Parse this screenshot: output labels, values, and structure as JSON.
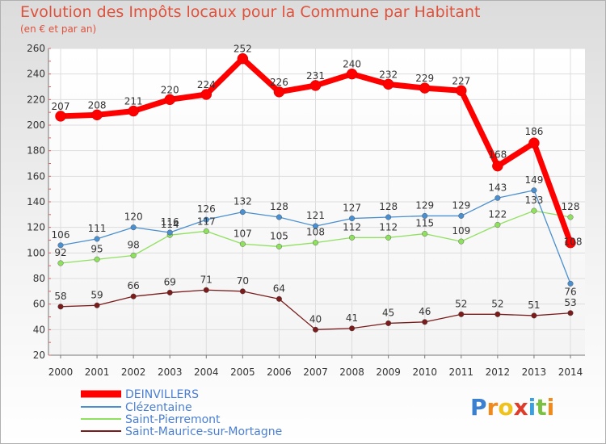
{
  "chart_data": {
    "type": "line",
    "title": "Evolution des Impôts locaux pour la Commune par Habitant",
    "subtitle": "(en € et par an)",
    "xlabel": "",
    "ylabel": "",
    "ylim": [
      20,
      260
    ],
    "y_ticks": [
      "20",
      "40",
      "60",
      "80",
      "100",
      "120",
      "140",
      "160",
      "180",
      "200",
      "220",
      "240",
      "260"
    ],
    "x": [
      "2000",
      "2001",
      "2002",
      "2003",
      "2004",
      "2005",
      "2006",
      "2007",
      "2008",
      "2009",
      "2010",
      "2011",
      "2012",
      "2013",
      "2014"
    ],
    "grid": true,
    "legend_position": "bottom-left",
    "series": [
      {
        "name": "DEINVILLERS",
        "color": "#ff0000",
        "values": [
          207,
          208,
          211,
          220,
          224,
          252,
          226,
          231,
          240,
          232,
          229,
          227,
          168,
          186,
          108
        ]
      },
      {
        "name": "Clézentaine",
        "color": "#4a8fd0",
        "values": [
          106,
          111,
          120,
          116,
          126,
          132,
          128,
          121,
          127,
          128,
          129,
          129,
          143,
          149,
          76
        ]
      },
      {
        "name": "Saint-Pierremont",
        "color": "#90e060",
        "values": [
          92,
          95,
          98,
          114,
          117,
          107,
          105,
          108,
          112,
          112,
          115,
          109,
          122,
          133,
          128
        ]
      },
      {
        "name": "Saint-Maurice-sur-Mortagne",
        "color": "#7a1c1c",
        "values": [
          58,
          59,
          66,
          69,
          71,
          70,
          64,
          40,
          41,
          45,
          46,
          52,
          52,
          51,
          53
        ]
      }
    ]
  },
  "logo": {
    "text": "Proxiti"
  }
}
